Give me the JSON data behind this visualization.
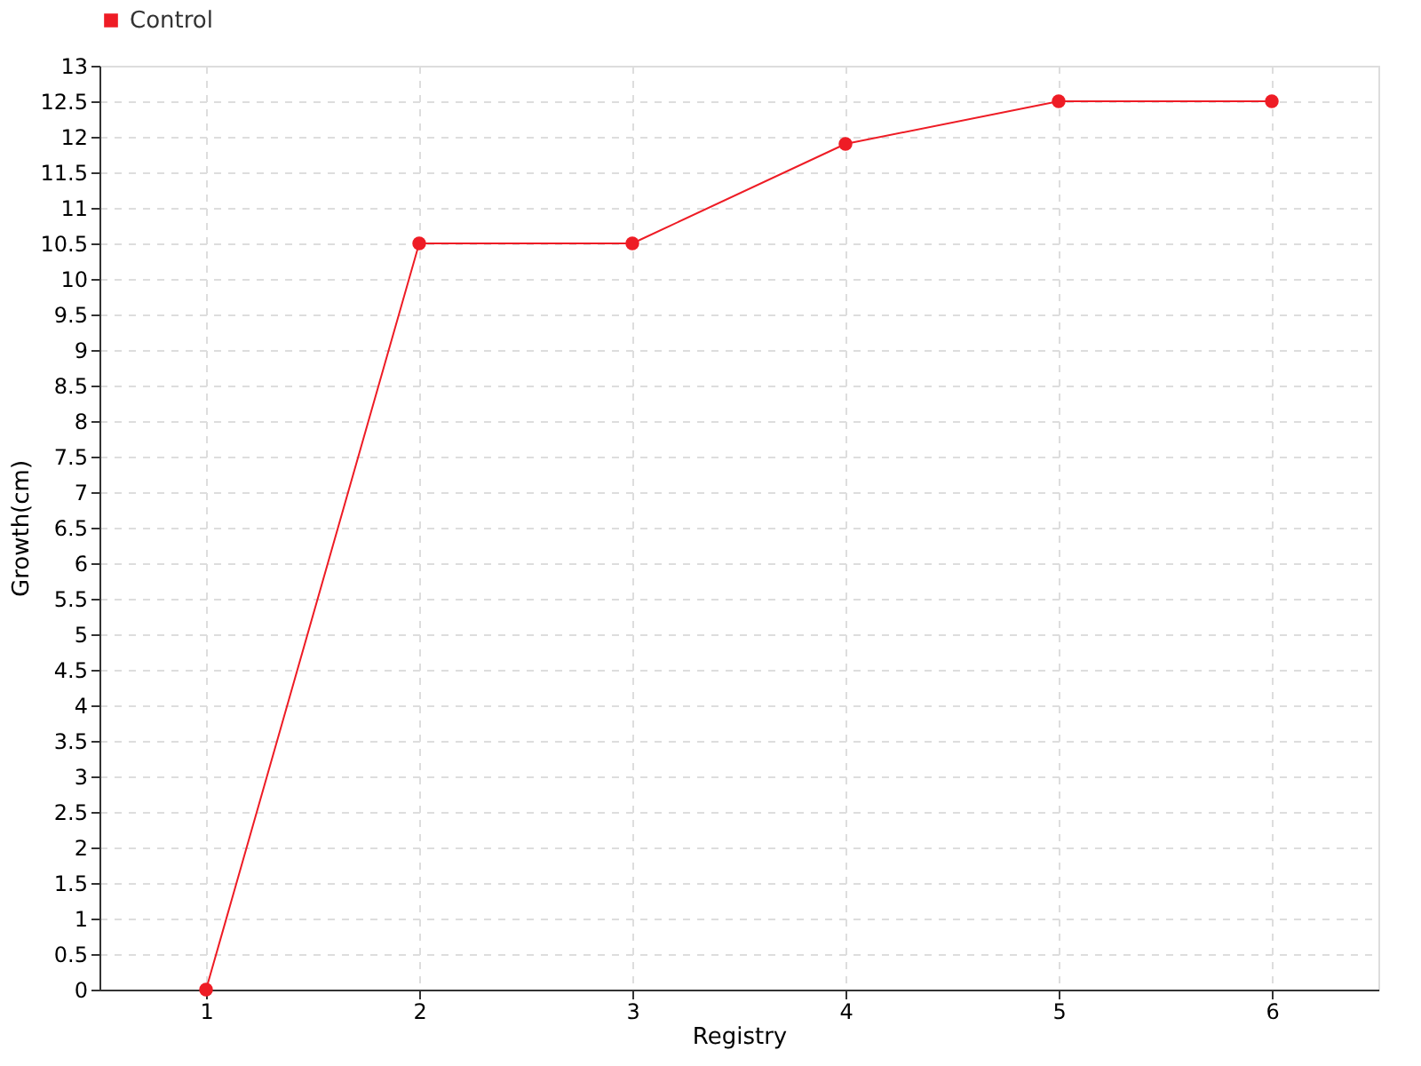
{
  "chart_data": {
    "type": "line",
    "xlabel": "Registry",
    "ylabel": "Growth(cm)",
    "categories": [
      "1",
      "2",
      "3",
      "4",
      "5",
      "6"
    ],
    "series": [
      {
        "name": "Control",
        "color": "#ee1c25",
        "values": [
          0,
          10.5,
          10.5,
          11.9,
          12.5,
          12.5
        ]
      }
    ],
    "ylim": [
      0,
      13
    ],
    "yticks": [
      0,
      0.5,
      1,
      1.5,
      2,
      2.5,
      3,
      3.5,
      4,
      4.5,
      5,
      5.5,
      6,
      6.5,
      7,
      7.5,
      8,
      8.5,
      9,
      9.5,
      10,
      10.5,
      11,
      11.5,
      12,
      12.5,
      13
    ],
    "grid": true,
    "legend": "top left",
    "marker": "circle",
    "line_style": "solid"
  }
}
